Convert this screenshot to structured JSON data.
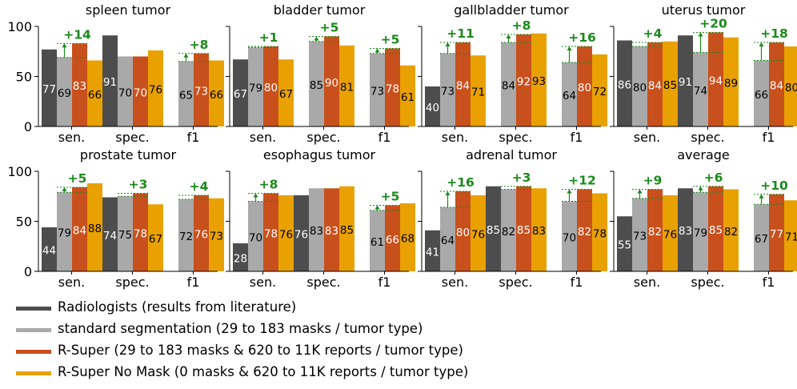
{
  "chart_data": {
    "type": "bar",
    "series": [
      {
        "name": "Radiologists (results from literature)",
        "color": "#4d4d4d"
      },
      {
        "name": "standard segmentation (29 to 183 masks / tumor type)",
        "color": "#a9a9a9"
      },
      {
        "name": "R-Super (29 to 183 masks & 620 to 11K reports / tumor type)",
        "color": "#c8501c"
      },
      {
        "name": "R-Super No Mask (0 masks & 620 to 11K reports / tumor type)",
        "color": "#e8a100"
      }
    ],
    "legend_position": "bottom-left",
    "grid": false,
    "ylim": [
      0,
      100
    ],
    "yticks": [
      "0",
      "50",
      "100"
    ],
    "categories": [
      "sen.",
      "spec.",
      "f1"
    ],
    "annotation_color": "#1b8a1b",
    "panels": [
      {
        "title": "spleen tumor",
        "values": [
          [
            77,
            69,
            83,
            66
          ],
          [
            91,
            70,
            70,
            76
          ],
          [
            null,
            65,
            73,
            66
          ]
        ],
        "gains": [
          "+14",
          "",
          "+8"
        ]
      },
      {
        "title": "bladder tumor",
        "values": [
          [
            67,
            79,
            80,
            67
          ],
          [
            null,
            85,
            90,
            81
          ],
          [
            null,
            73,
            78,
            61
          ]
        ],
        "gains": [
          "+1",
          "+5",
          "+5"
        ]
      },
      {
        "title": "gallbladder tumor",
        "values": [
          [
            40,
            73,
            84,
            71
          ],
          [
            null,
            84,
            92,
            93
          ],
          [
            null,
            64,
            80,
            72
          ]
        ],
        "gains": [
          "+11",
          "+8",
          "+16"
        ]
      },
      {
        "title": "uterus tumor",
        "values": [
          [
            86,
            80,
            84,
            85
          ],
          [
            91,
            74,
            94,
            89
          ],
          [
            null,
            66,
            84,
            80
          ]
        ],
        "gains": [
          "+4",
          "+20",
          "+18"
        ]
      },
      {
        "title": "prostate tumor",
        "values": [
          [
            44,
            79,
            84,
            88
          ],
          [
            74,
            75,
            78,
            67
          ],
          [
            null,
            72,
            76,
            73
          ]
        ],
        "gains": [
          "+5",
          "+3",
          "+4"
        ]
      },
      {
        "title": "esophagus tumor",
        "values": [
          [
            28,
            70,
            78,
            76
          ],
          [
            76,
            83,
            83,
            85
          ],
          [
            null,
            61,
            66,
            68
          ]
        ],
        "gains": [
          "+8",
          "",
          "+5"
        ]
      },
      {
        "title": "adrenal tumor",
        "values": [
          [
            41,
            64,
            80,
            76
          ],
          [
            85,
            82,
            85,
            83
          ],
          [
            null,
            70,
            82,
            78
          ]
        ],
        "gains": [
          "+16",
          "+3",
          "+12"
        ]
      },
      {
        "title": "average",
        "values": [
          [
            55,
            73,
            82,
            76
          ],
          [
            83,
            79,
            85,
            82
          ],
          [
            null,
            67,
            77,
            71
          ]
        ],
        "gains": [
          "+9",
          "+6",
          "+10"
        ]
      }
    ]
  }
}
